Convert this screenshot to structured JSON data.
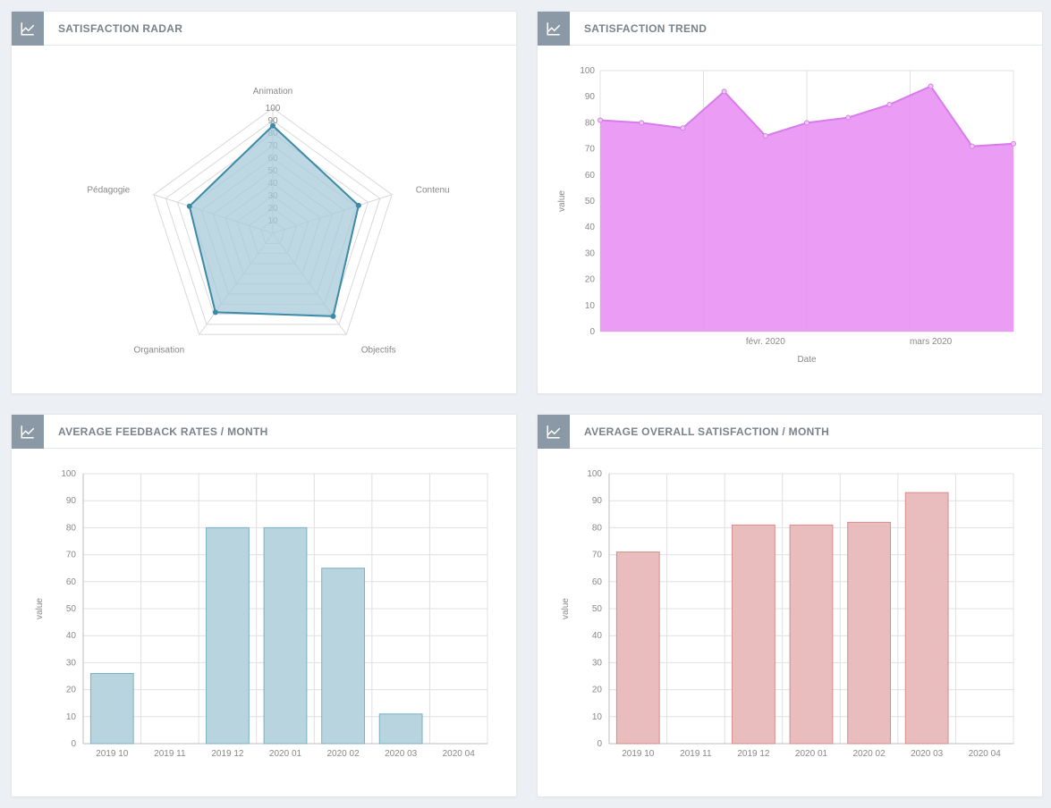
{
  "page_background": "#eceff4",
  "panel_background": "#ffffff",
  "panel_border_color": "#e4e7eb",
  "icon_box_color": "#8b98a6",
  "title_color": "#7a828c",
  "text_color": "#888888",
  "grid_color": "#e0e0e0",
  "radar": {
    "title": "SATISFACTION RADAR",
    "type": "radar",
    "axes": [
      "Animation",
      "Contenu",
      "Objectifs",
      "Organisation",
      "Pédagogie"
    ],
    "max": 100,
    "rings": [
      10,
      20,
      30,
      40,
      50,
      60,
      70,
      80,
      90,
      100
    ],
    "ring_labels": [
      10,
      20,
      30,
      40,
      50,
      60,
      70,
      80,
      90,
      100
    ],
    "values": [
      86,
      72,
      82,
      78,
      70
    ],
    "fill_color": "#a7cbd9",
    "stroke_color": "#3b8aa7",
    "point_color": "#3b8aa7",
    "label_fontsize": 10
  },
  "trend": {
    "title": "SATISFACTION TREND",
    "type": "area",
    "xlabel": "Date",
    "ylabel": "value",
    "ylim": [
      0,
      100
    ],
    "ytick_step": 10,
    "x_ticks": [
      "févr. 2020",
      "mars 2020"
    ],
    "x_tick_idx": [
      4,
      8
    ],
    "points_y": [
      81,
      80,
      78,
      92,
      75,
      80,
      82,
      87,
      94,
      71,
      72
    ],
    "fill_color": "#e78bf2",
    "stroke_color": "#d77cea",
    "point_color": "#eac8f0",
    "background_color": "#ffffff"
  },
  "feedback": {
    "title": "AVERAGE FEEDBACK RATES / MONTH",
    "type": "bar",
    "ylabel": "value",
    "ylim": [
      0,
      100
    ],
    "ytick_step": 10,
    "categories": [
      "2019 10",
      "2019 11",
      "2019 12",
      "2020 01",
      "2020 02",
      "2020 03",
      "2020 04"
    ],
    "values": [
      26,
      0,
      80,
      80,
      65,
      11,
      0
    ],
    "bar_fill": "#b8d4df",
    "bar_stroke": "#79b0c4",
    "bar_width": 0.74
  },
  "overall": {
    "title": "AVERAGE OVERALL SATISFACTION / MONTH",
    "type": "bar",
    "ylabel": "value",
    "ylim": [
      0,
      100
    ],
    "ytick_step": 10,
    "categories": [
      "2019 10",
      "2019 11",
      "2019 12",
      "2020 01",
      "2020 02",
      "2020 03",
      "2020 04"
    ],
    "values": [
      71,
      0,
      81,
      81,
      82,
      93,
      0
    ],
    "bar_fill": "#e9bdbd",
    "bar_stroke": "#d88b8b",
    "bar_width": 0.74
  }
}
